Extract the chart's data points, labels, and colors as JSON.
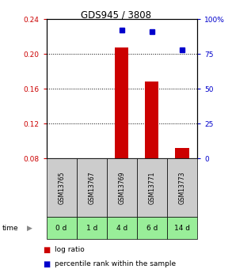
{
  "title": "GDS945 / 3808",
  "samples": [
    "GSM13765",
    "GSM13767",
    "GSM13769",
    "GSM13771",
    "GSM13773"
  ],
  "time_labels": [
    "0 d",
    "1 d",
    "4 d",
    "6 d",
    "14 d"
  ],
  "log_ratio": [
    null,
    null,
    0.207,
    0.168,
    0.092
  ],
  "percentile_rank": [
    null,
    null,
    92,
    91,
    78
  ],
  "bar_color": "#cc0000",
  "dot_color": "#0000cc",
  "ylim_left": [
    0.08,
    0.24
  ],
  "ylim_right": [
    0,
    100
  ],
  "yticks_left": [
    0.08,
    0.12,
    0.16,
    0.2,
    0.24
  ],
  "ytick_labels_left": [
    "0.08",
    "0.12",
    "0.16",
    "0.20",
    "0.24"
  ],
  "yticks_right": [
    0,
    25,
    50,
    75,
    100
  ],
  "ytick_labels_right": [
    "0",
    "25",
    "50",
    "75",
    "100%"
  ],
  "sample_box_color": "#cccccc",
  "time_box_color": "#99ee99",
  "legend_red_label": "log ratio",
  "legend_blue_label": "percentile rank within the sample",
  "time_arrow_label": "time"
}
